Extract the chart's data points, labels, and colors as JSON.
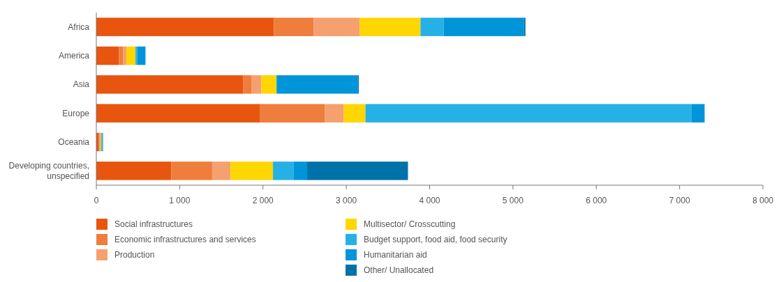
{
  "chart_data": {
    "type": "bar",
    "orientation": "horizontal",
    "stacked": true,
    "legend": "bottom",
    "grid": false,
    "categories": [
      "Africa",
      "America",
      "Asia",
      "Europe",
      "Oceania",
      "Developing countries, unspecified"
    ],
    "xlim": [
      0,
      8000
    ],
    "xticks": [
      {
        "value": 0,
        "label": "0"
      },
      {
        "value": 1000,
        "label": "1 000"
      },
      {
        "value": 2000,
        "label": "2 000"
      },
      {
        "value": 3000,
        "label": "3 000"
      },
      {
        "value": 4000,
        "label": "4 000"
      },
      {
        "value": 5000,
        "label": "5 000"
      },
      {
        "value": 6000,
        "label": "6 000"
      },
      {
        "value": 7000,
        "label": "7 000"
      },
      {
        "value": 8000,
        "label": "8 000"
      }
    ],
    "series": [
      {
        "name": "Social infrastructures",
        "color": "#e8550f",
        "values": [
          2130,
          270,
          1760,
          1960,
          30,
          900
        ]
      },
      {
        "name": "Economic infrastructures and services",
        "color": "#ef7d3c",
        "values": [
          480,
          50,
          100,
          780,
          10,
          490
        ]
      },
      {
        "name": "Production",
        "color": "#f5a06e",
        "values": [
          550,
          40,
          120,
          230,
          10,
          220
        ]
      },
      {
        "name": "Multisector/ Crosscutting",
        "color": "#ffd600",
        "values": [
          730,
          110,
          180,
          260,
          10,
          510
        ]
      },
      {
        "name": "Budget support, food aid, food security",
        "color": "#26b1e6",
        "values": [
          280,
          20,
          10,
          3910,
          10,
          250
        ]
      },
      {
        "name": "Humanitarian aid",
        "color": "#0095d9",
        "values": [
          960,
          100,
          970,
          160,
          10,
          160
        ]
      },
      {
        "name": "Other/ Unallocated",
        "color": "#0072aa",
        "values": [
          20,
          0,
          10,
          0,
          0,
          1210
        ]
      }
    ]
  }
}
